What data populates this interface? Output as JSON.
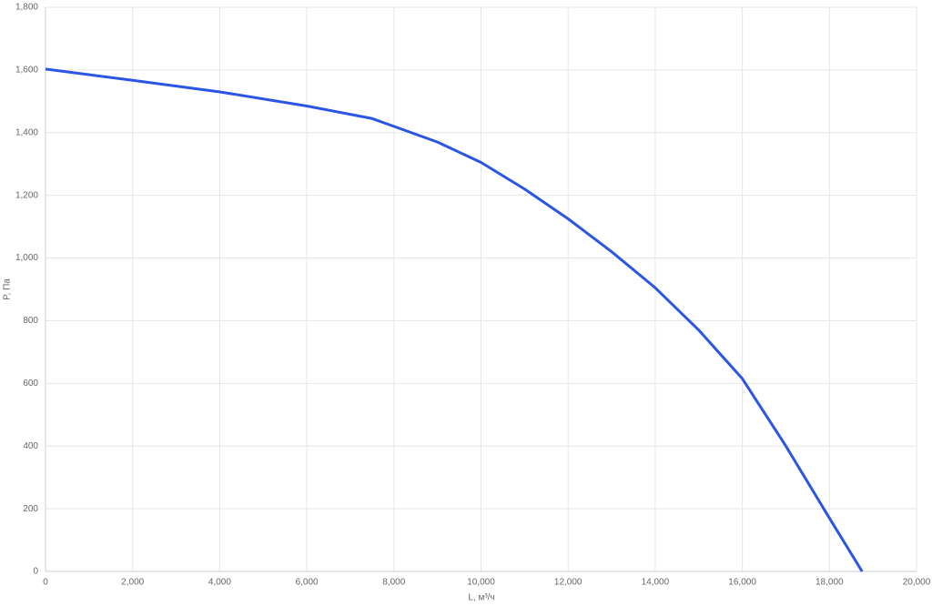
{
  "chart_data": {
    "type": "line",
    "xlabel": "L, м³/ч",
    "ylabel": "P, Па",
    "x": [
      0,
      2000,
      4000,
      6000,
      7500,
      8000,
      9000,
      10000,
      11000,
      12000,
      13000,
      14000,
      15000,
      16000,
      17000,
      18000,
      18750
    ],
    "values": [
      1603,
      1567,
      1530,
      1485,
      1445,
      1420,
      1370,
      1305,
      1220,
      1125,
      1020,
      905,
      770,
      615,
      400,
      170,
      0
    ],
    "color": "#2a55e5",
    "xlim": [
      0,
      20000
    ],
    "ylim": [
      0,
      1800
    ],
    "xticks": [
      0,
      {
        "value": 2000,
        "label": "2,000"
      },
      {
        "value": 4000,
        "label": "4,000"
      },
      {
        "value": 6000,
        "label": "6,000"
      },
      {
        "value": 8000,
        "label": "8,000"
      },
      {
        "value": 10000,
        "label": "10,000"
      },
      {
        "value": 12000,
        "label": "12,000"
      },
      {
        "value": 14000,
        "label": "14,000"
      },
      {
        "value": 16000,
        "label": "16,000"
      },
      {
        "value": 18000,
        "label": "18,000"
      },
      {
        "value": 20000,
        "label": "20,000"
      }
    ],
    "yticks": [
      0,
      200,
      400,
      600,
      800,
      {
        "value": 1000,
        "label": "1,000"
      },
      {
        "value": 1200,
        "label": "1,200"
      },
      {
        "value": 1400,
        "label": "1,400"
      },
      {
        "value": 1600,
        "label": "1,600"
      },
      {
        "value": 1800,
        "label": "1,800"
      }
    ],
    "grid": true
  }
}
